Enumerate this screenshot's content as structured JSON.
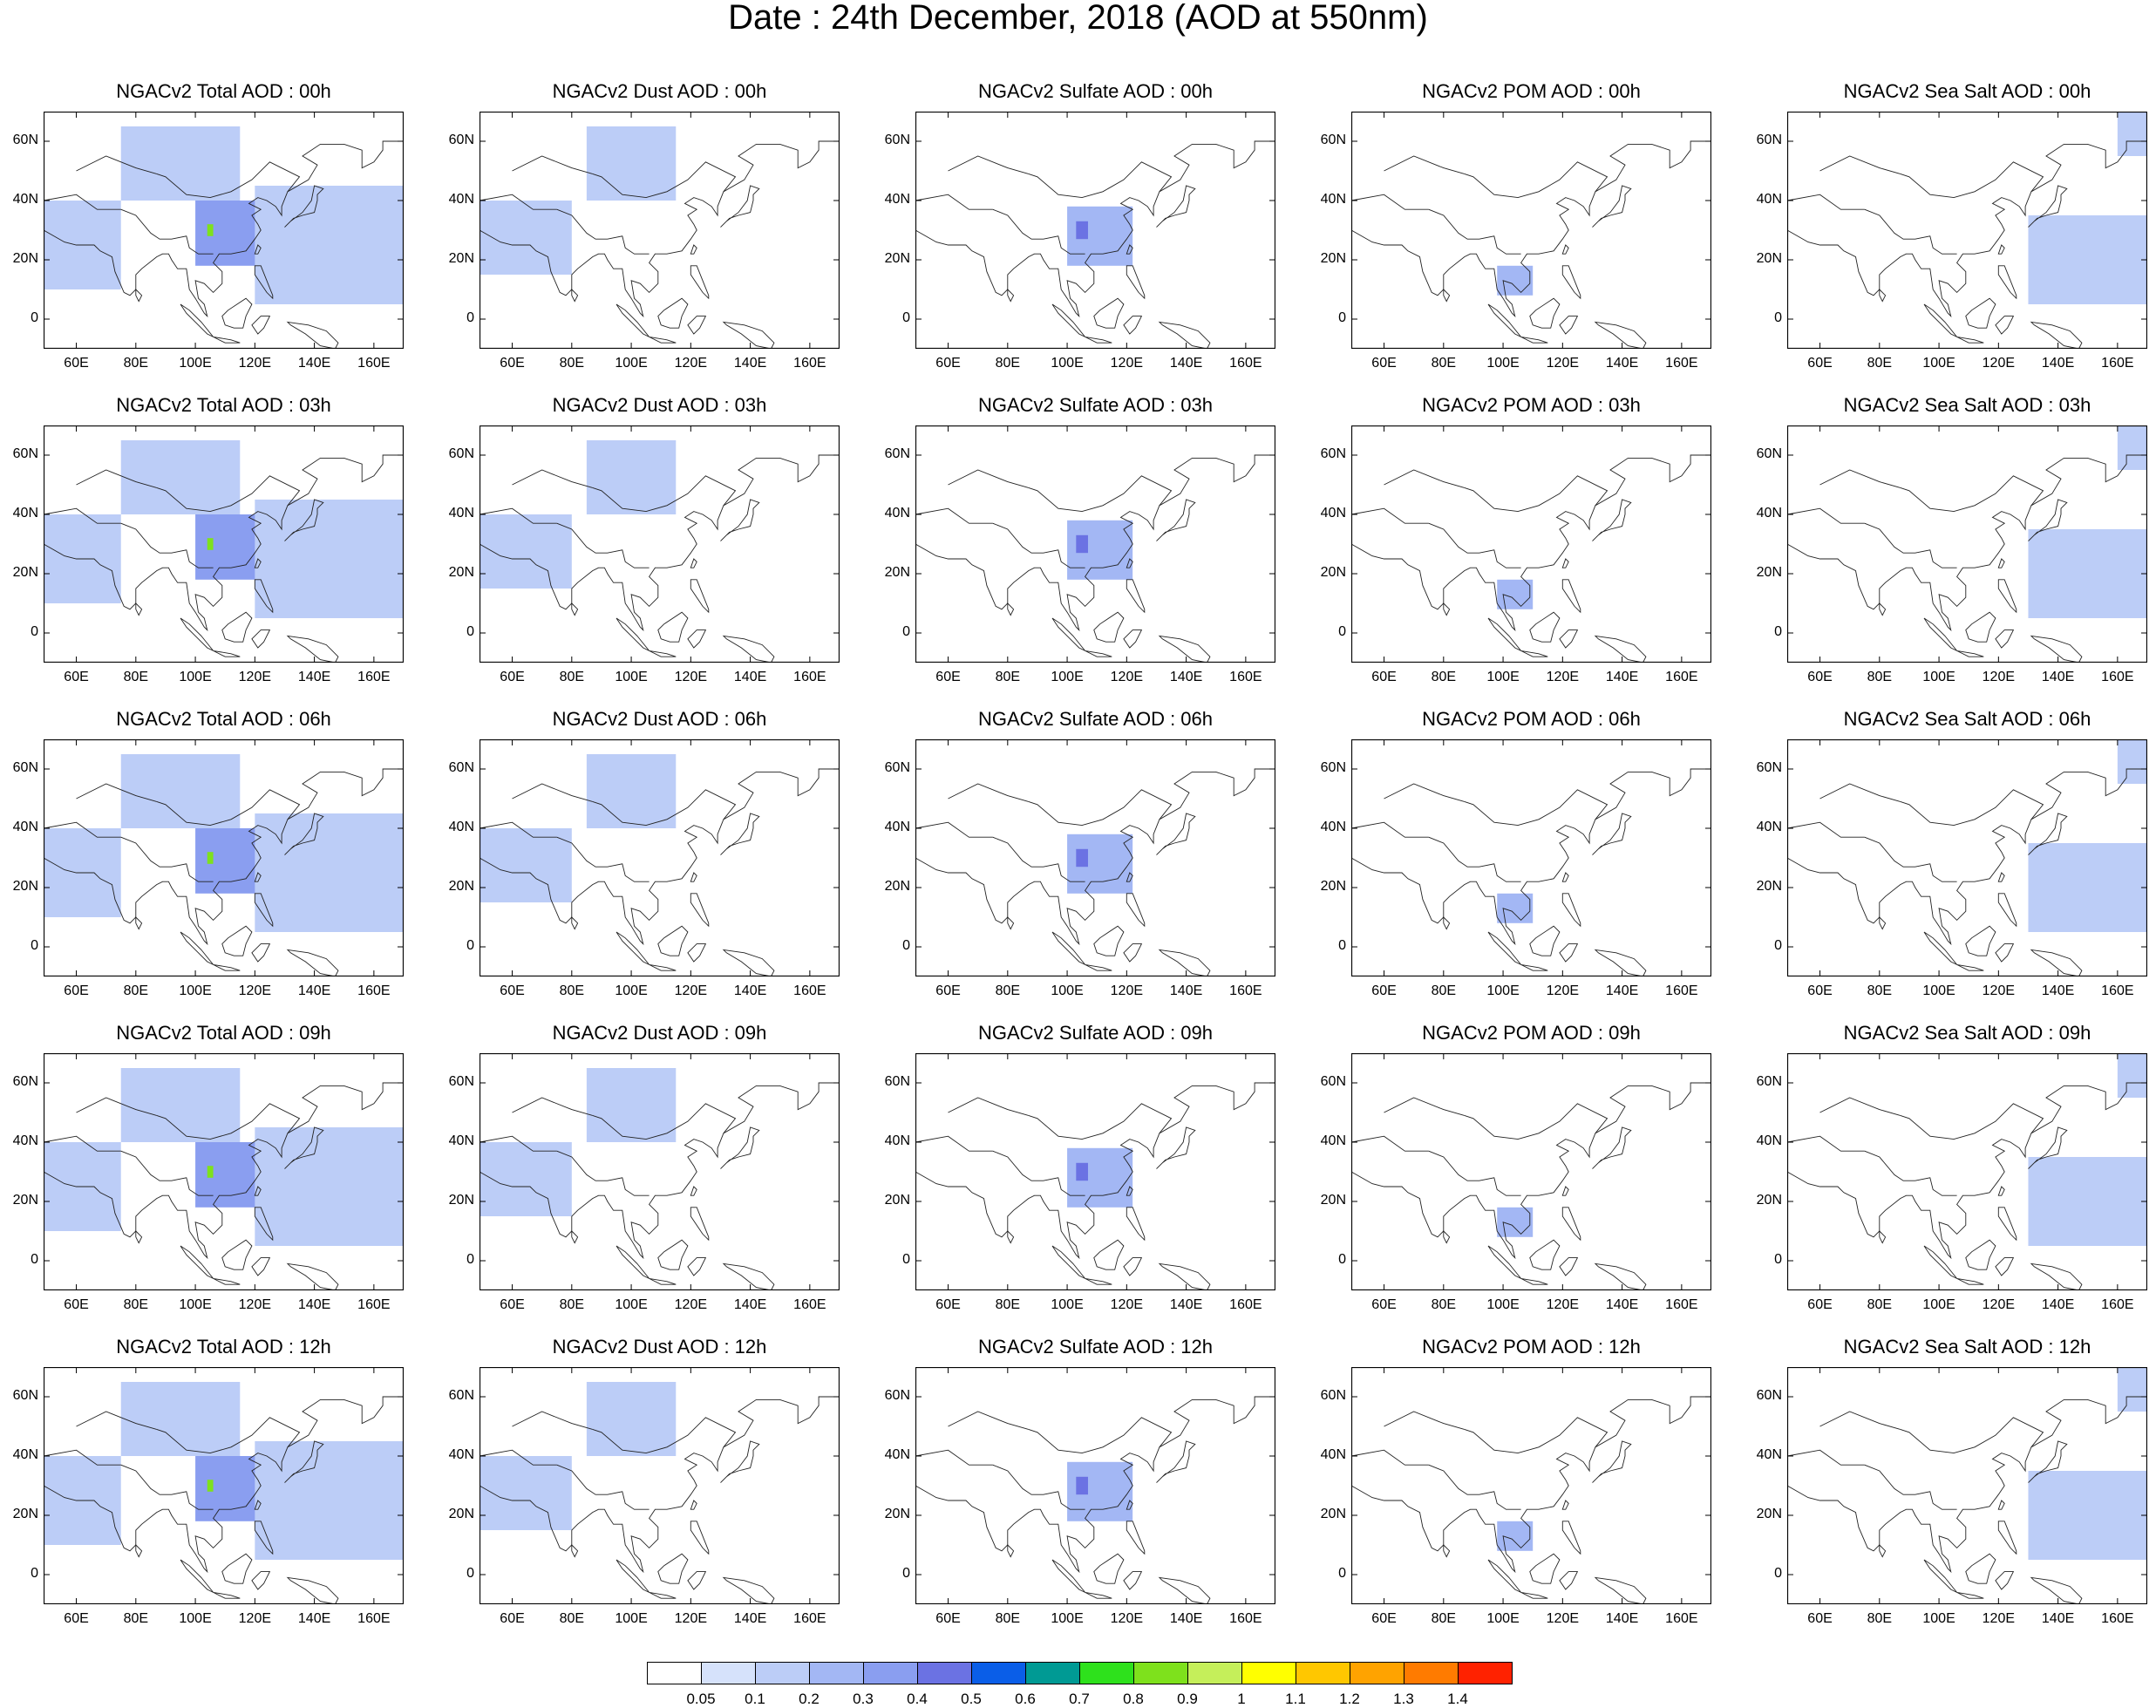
{
  "title": "Date : 24th December, 2018 (AOD at 550nm)",
  "axes": {
    "lat_labels": [
      "60N",
      "40N",
      "20N",
      "0"
    ],
    "lat_values": [
      60,
      40,
      20,
      0
    ],
    "lon_labels": [
      "60E",
      "80E",
      "100E",
      "120E",
      "140E",
      "160E"
    ],
    "lon_values": [
      60,
      80,
      100,
      120,
      140,
      160
    ],
    "lon_range": [
      49,
      170
    ],
    "lat_range": [
      -10,
      70
    ]
  },
  "columns": [
    "Total",
    "Dust",
    "Sulfate",
    "POM",
    "Sea Salt"
  ],
  "rows": [
    "00h",
    "03h",
    "06h",
    "09h",
    "12h"
  ],
  "panels": [
    [
      "NGACv2 Total AOD : 00h",
      "NGACv2 Dust AOD : 00h",
      "NGACv2 Sulfate AOD : 00h",
      "NGACv2 POM AOD : 00h",
      "NGACv2 Sea Salt AOD : 00h"
    ],
    [
      "NGACv2 Total AOD : 03h",
      "NGACv2 Dust AOD : 03h",
      "NGACv2 Sulfate AOD : 03h",
      "NGACv2 POM AOD : 03h",
      "NGACv2 Sea Salt AOD : 03h"
    ],
    [
      "NGACv2 Total AOD : 06h",
      "NGACv2 Dust AOD : 06h",
      "NGACv2 Sulfate AOD : 06h",
      "NGACv2 POM AOD : 06h",
      "NGACv2 Sea Salt AOD : 06h"
    ],
    [
      "NGACv2 Total AOD : 09h",
      "NGACv2 Dust AOD : 09h",
      "NGACv2 Sulfate AOD : 09h",
      "NGACv2 POM AOD : 09h",
      "NGACv2 Sea Salt  AOD : 09h"
    ],
    [
      "NGACv2 Total AOD  : 12h",
      "NGACv2 Dust AOD : 12h",
      "NGACv2 Sulfate AOD : 12h",
      "NGACv2 POM  AOD : 12h",
      "NGACv2 Sea Salt  AOD : 12h"
    ]
  ],
  "colorbar": {
    "labels": [
      "0.05",
      "0.1",
      "0.2",
      "0.3",
      "0.4",
      "0.5",
      "0.6",
      "0.7",
      "0.8",
      "0.9",
      "1",
      "1.1",
      "1.2",
      "1.3",
      "1.4"
    ],
    "colors": [
      "#ffffff",
      "#d6e2fb",
      "#bccdf7",
      "#a3b7f4",
      "#8a9ef0",
      "#6b72e3",
      "#0a5ee8",
      "#009a94",
      "#2ee11c",
      "#7ee11c",
      "#c5ef5a",
      "#ffff00",
      "#ffc700",
      "#ffa300",
      "#ff7b00",
      "#ff2200"
    ]
  },
  "chart_data": {
    "type": "heatmap",
    "description_keys": "regions of enhanced AOD per species (approximate, lon/lat in degrees, level in AOD)",
    "fields": {
      "Total": [
        {
          "lon": [
            49,
            75
          ],
          "lat": [
            10,
            40
          ],
          "level": 0.1
        },
        {
          "lon": [
            75,
            115
          ],
          "lat": [
            40,
            65
          ],
          "level": 0.1
        },
        {
          "lon": [
            100,
            125
          ],
          "lat": [
            18,
            40
          ],
          "level": 0.3
        },
        {
          "lon": [
            104,
            106
          ],
          "lat": [
            28,
            32
          ],
          "level": 0.8
        },
        {
          "lon": [
            120,
            170
          ],
          "lat": [
            5,
            45
          ],
          "level": 0.1
        }
      ],
      "Dust": [
        {
          "lon": [
            49,
            80
          ],
          "lat": [
            15,
            40
          ],
          "level": 0.1
        },
        {
          "lon": [
            85,
            115
          ],
          "lat": [
            40,
            65
          ],
          "level": 0.1
        }
      ],
      "Sulfate": [
        {
          "lon": [
            100,
            122
          ],
          "lat": [
            18,
            38
          ],
          "level": 0.2
        },
        {
          "lon": [
            103,
            107
          ],
          "lat": [
            27,
            33
          ],
          "level": 0.4
        }
      ],
      "POM": [
        {
          "lon": [
            98,
            110
          ],
          "lat": [
            8,
            18
          ],
          "level": 0.2
        }
      ],
      "Sea Salt": [
        {
          "lon": [
            130,
            170
          ],
          "lat": [
            5,
            35
          ],
          "level": 0.1
        },
        {
          "lon": [
            160,
            170
          ],
          "lat": [
            55,
            70
          ],
          "level": 0.1
        }
      ]
    }
  }
}
